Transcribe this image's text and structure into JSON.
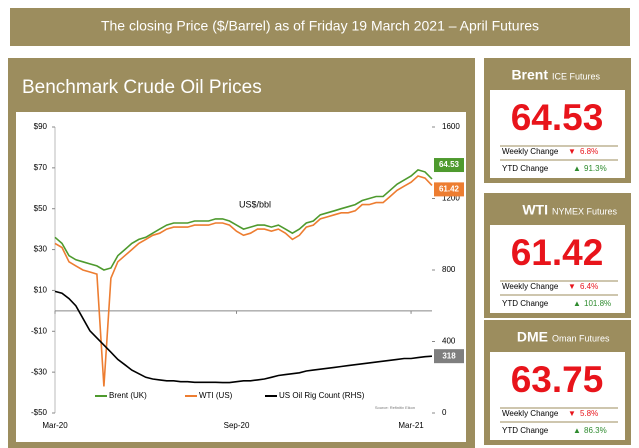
{
  "banner": "The closing Price ($/Barrel) as of Friday 19 March 2021 – April Futures",
  "chart_data": {
    "type": "line",
    "title": "Benchmark Crude Oil Prices",
    "annotation": "US$/bbl",
    "source": "Source: Refinitiv Eikon",
    "xlim": [
      0,
      54
    ],
    "xticks": [
      {
        "value": 0,
        "label": "Mar-20"
      },
      {
        "value": 26,
        "label": "Sep-20"
      },
      {
        "value": 51,
        "label": "Mar-21"
      }
    ],
    "ylim": [
      -50,
      90
    ],
    "yticks": [
      {
        "value": 90,
        "label": "$90"
      },
      {
        "value": 70,
        "label": "$70"
      },
      {
        "value": 50,
        "label": "$50"
      },
      {
        "value": 30,
        "label": "$30"
      },
      {
        "value": 10,
        "label": "$10"
      },
      {
        "value": -10,
        "label": "-$10"
      },
      {
        "value": -30,
        "label": "-$30"
      },
      {
        "value": -50,
        "label": "-$50"
      }
    ],
    "y2lim": [
      0,
      1600
    ],
    "y2ticks": [
      0,
      400,
      800,
      1200,
      1600
    ],
    "grid": false,
    "series": [
      {
        "name": "Brent (UK)",
        "color": "#4e9a2e",
        "values": [
          36,
          33,
          27,
          25,
          24,
          23,
          22,
          20,
          21,
          27,
          30,
          33,
          35,
          36,
          38,
          40,
          42,
          43,
          43,
          43,
          44,
          44,
          44,
          45,
          45,
          44,
          42,
          40,
          41,
          42,
          42,
          41,
          42,
          40,
          38,
          40,
          43,
          44,
          47,
          48,
          49,
          50,
          51,
          52,
          54,
          55,
          56,
          56,
          59,
          62,
          64,
          66,
          69,
          68,
          64.53
        ]
      },
      {
        "name": "WTI (US)",
        "color": "#ed7d31",
        "values": [
          33,
          31,
          24,
          22,
          20,
          19,
          18,
          -37,
          16,
          24,
          27,
          30,
          33,
          35,
          37,
          38,
          40,
          41,
          41,
          41,
          42,
          42,
          42,
          43,
          43,
          42,
          39,
          37,
          38,
          40,
          40,
          39,
          40,
          38,
          35,
          37,
          41,
          42,
          45,
          46,
          47,
          48,
          48,
          49,
          52,
          52,
          53,
          53,
          56,
          59,
          61,
          63,
          66,
          65,
          61.42
        ]
      },
      {
        "name": "US Oil Rig Count (RHS)",
        "color": "#000000",
        "axis": "y2",
        "values": [
          680,
          670,
          640,
          600,
          530,
          460,
          420,
          380,
          340,
          300,
          270,
          240,
          220,
          200,
          190,
          185,
          180,
          180,
          175,
          175,
          172,
          172,
          172,
          172,
          170,
          170,
          175,
          180,
          180,
          185,
          190,
          200,
          210,
          215,
          220,
          225,
          235,
          240,
          245,
          250,
          255,
          260,
          265,
          270,
          275,
          280,
          285,
          290,
          295,
          300,
          305,
          305,
          310,
          315,
          318
        ]
      }
    ]
  },
  "cards": [
    {
      "name": "Brent",
      "exchange": "ICE Futures",
      "price": "64.53",
      "weekly_label": "Weekly Change",
      "weekly_arrow": "▼",
      "weekly_change": "6.8%",
      "ytd_label": "YTD Change",
      "ytd_arrow": "▲",
      "ytd_change": "91.3%"
    },
    {
      "name": "WTI",
      "exchange": "NYMEX Futures",
      "price": "61.42",
      "weekly_label": "Weekly Change",
      "weekly_arrow": "▼",
      "weekly_change": "6.4%",
      "ytd_label": "YTD Change",
      "ytd_arrow": "▲",
      "ytd_change": "101.8%"
    },
    {
      "name": "DME",
      "exchange": "Oman Futures",
      "price": "63.75",
      "weekly_label": "Weekly Change",
      "weekly_arrow": "▼",
      "weekly_change": "5.8%",
      "ytd_label": "YTD Change",
      "ytd_arrow": "▲",
      "ytd_change": "86.3%"
    }
  ]
}
